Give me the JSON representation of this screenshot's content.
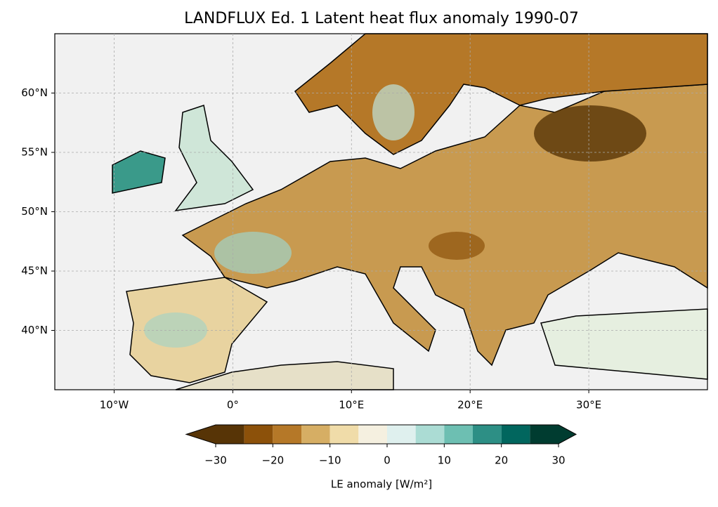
{
  "chart_data": {
    "type": "map",
    "title": "LANDFLUX Ed. 1 Latent heat flux anomaly 1990-07",
    "xlim": [
      -15,
      40
    ],
    "ylim": [
      35,
      65
    ],
    "grid": true,
    "xticks": [
      {
        "value": -10,
        "label": "10°W"
      },
      {
        "value": 0,
        "label": "0°"
      },
      {
        "value": 10,
        "label": "10°E"
      },
      {
        "value": 20,
        "label": "20°E"
      },
      {
        "value": 30,
        "label": "30°E"
      }
    ],
    "yticks": [
      {
        "value": 40,
        "label": "40°N"
      },
      {
        "value": 45,
        "label": "45°N"
      },
      {
        "value": 50,
        "label": "50°N"
      },
      {
        "value": 55,
        "label": "55°N"
      },
      {
        "value": 60,
        "label": "60°N"
      }
    ],
    "colorbar": {
      "label": "LE anomaly [W/m²]",
      "levels": [
        -30,
        -25,
        -20,
        -15,
        -10,
        -5,
        0,
        5,
        10,
        15,
        20,
        25,
        30
      ],
      "colors": [
        "#573406",
        "#8c510a",
        "#b57828",
        "#d6ae64",
        "#f0dca9",
        "#f5f0e0",
        "#dff0ee",
        "#abdcd4",
        "#6dbfb2",
        "#2d8f85",
        "#01665e",
        "#003c30"
      ],
      "ticks": [
        {
          "value": -30,
          "label": "−30"
        },
        {
          "value": -20,
          "label": "−20"
        },
        {
          "value": -10,
          "label": "−10"
        },
        0,
        10,
        20,
        30
      ]
    }
  }
}
